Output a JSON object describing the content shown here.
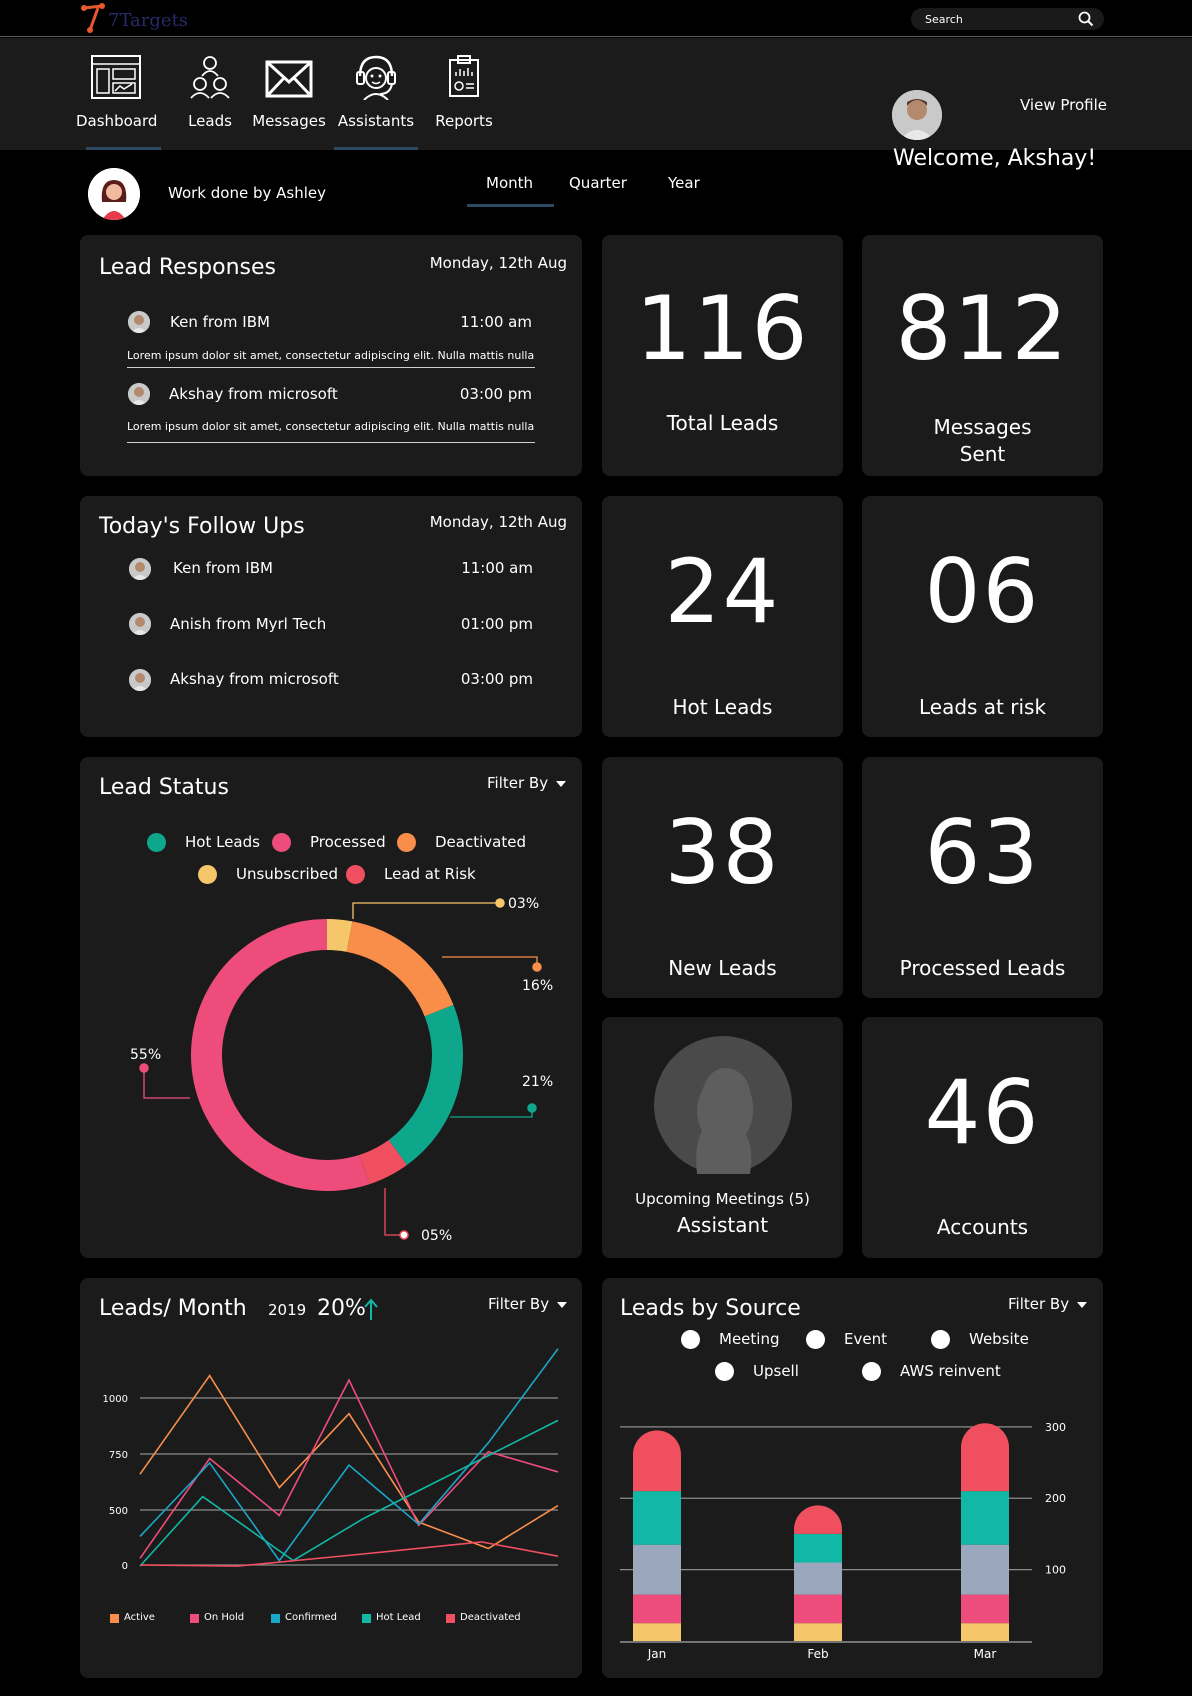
{
  "app": {
    "logo_text": "7Targets"
  },
  "search": {
    "placeholder": "Search"
  },
  "nav": {
    "items": [
      {
        "label": "Dashboard",
        "icon": "dashboard-icon"
      },
      {
        "label": "Leads",
        "icon": "leads-icon"
      },
      {
        "label": "Messages",
        "icon": "envelope-icon"
      },
      {
        "label": "Assistants",
        "icon": "headset-icon"
      },
      {
        "label": "Reports",
        "icon": "report-icon"
      }
    ],
    "active": "Assistants"
  },
  "profile": {
    "view_label": "View Profile",
    "welcome": "Welcome, Akshay!"
  },
  "work": {
    "label": "Work done by Ashley",
    "tabs": [
      "Month",
      "Quarter",
      "Year"
    ],
    "active_tab": "Month"
  },
  "lead_responses": {
    "title": "Lead Responses",
    "date": "Monday, 12th Aug",
    "rows": [
      {
        "name": "Ken from IBM",
        "time": "11:00 am",
        "message": "Lorem ipsum dolor sit amet, consectetur adipiscing elit. Nulla mattis nulla"
      },
      {
        "name": "Akshay from microsoft",
        "time": "03:00 pm",
        "message": "Lorem ipsum dolor sit amet, consectetur adipiscing elit. Nulla mattis nulla"
      }
    ]
  },
  "follow_ups": {
    "title": "Today's Follow Ups",
    "date": "Monday, 12th Aug",
    "rows": [
      {
        "name": "Ken from IBM",
        "time": "11:00 am"
      },
      {
        "name": "Anish from Myrl Tech",
        "time": "01:00 pm"
      },
      {
        "name": "Akshay from microsoft",
        "time": "03:00 pm"
      }
    ]
  },
  "stats": {
    "total_leads": {
      "value": "116",
      "label": "Total Leads"
    },
    "messages_sent": {
      "value": "812",
      "label": "Messages Sent"
    },
    "hot_leads": {
      "value": "24",
      "label": "Hot Leads"
    },
    "leads_at_risk": {
      "value": "06",
      "label": "Leads at risk"
    },
    "new_leads": {
      "value": "38",
      "label": "New Leads"
    },
    "processed_leads": {
      "value": "63",
      "label": "Processed Leads"
    },
    "accounts": {
      "value": "46",
      "label": "Accounts"
    }
  },
  "assistant": {
    "meetings": "Upcoming Meetings (5)",
    "label": "Assistant"
  },
  "filter_label": "Filter By",
  "colors": {
    "card": "#1b1b1b",
    "teal": "#0fa78b",
    "pink": "#ee4d7c",
    "orange": "#f98e4a",
    "yellow": "#f6c66a",
    "red": "#ef4f5e"
  },
  "chart_data": [
    {
      "type": "pie",
      "title": "Lead Status",
      "categories": [
        "Hot Leads",
        "Processed",
        "Deactivated",
        "Unsubscribed",
        "Lead at Risk"
      ],
      "values": [
        21,
        55,
        16,
        3,
        5
      ],
      "labels": [
        "21%",
        "55%",
        "16%",
        "03%",
        "05%"
      ],
      "colors": [
        "#0fa78b",
        "#ee4d7c",
        "#f98e4a",
        "#f6c66a",
        "#ef4f5e"
      ],
      "legend_position": "top"
    },
    {
      "type": "line",
      "title": "Leads/ Month",
      "year": "2019",
      "change": "20%",
      "yticks": [
        "0",
        "500",
        "750",
        "1000"
      ],
      "ytick_values": [
        0,
        500,
        750,
        1000
      ],
      "grid": true,
      "series": [
        {
          "name": "Active",
          "color": "#f98e4a",
          "values": [
            660,
            1100,
            600,
            930,
            390,
            150,
            520
          ]
        },
        {
          "name": "On Hold",
          "color": "#ee4d7c",
          "values": [
            60,
            730,
            450,
            1080,
            360,
            760,
            670
          ]
        },
        {
          "name": "Confirmed",
          "color": "#1aa6c8",
          "values": [
            260,
            710,
            40,
            700,
            370,
            800,
            1220
          ]
        },
        {
          "name": "Hot Lead",
          "color": "#11b8a5",
          "values": [
            -10,
            560,
            40,
            420,
            900
          ]
        },
        {
          "name": "Deactivated",
          "color": "#ef4f5e",
          "values": [
            0,
            -10,
            100,
            210,
            80
          ]
        }
      ]
    },
    {
      "type": "bar",
      "title": "Leads by Source",
      "categories": [
        "Jan",
        "Feb",
        "Mar"
      ],
      "yticks": [
        "100",
        "200",
        "300"
      ],
      "ytick_values": [
        100,
        200,
        300
      ],
      "ylim": [
        0,
        300
      ],
      "grid": true,
      "legend": [
        "Meeting",
        "Event",
        "Website",
        "Upsell",
        "AWS reinvent"
      ],
      "series": [
        {
          "color": "#f6c66a",
          "values": [
            25,
            25,
            25
          ]
        },
        {
          "color": "#ee4d7c",
          "values": [
            40,
            40,
            40
          ]
        },
        {
          "color": "#9aa7bd",
          "values": [
            70,
            45,
            70
          ]
        },
        {
          "color": "#11b8a5",
          "values": [
            75,
            40,
            75
          ]
        },
        {
          "color": "#ef4f5e",
          "values": [
            85,
            40,
            95
          ]
        }
      ]
    }
  ]
}
